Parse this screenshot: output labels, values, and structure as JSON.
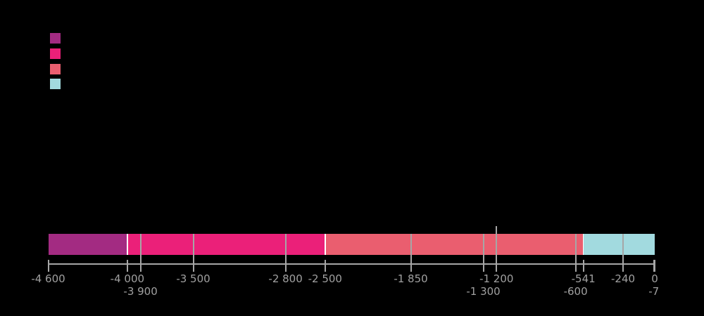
{
  "background_color": "#000000",
  "legend": {
    "swatches": [
      {
        "name": "legend-swatch-1",
        "color": "#A32B82"
      },
      {
        "name": "legend-swatch-2",
        "color": "#EB2079"
      },
      {
        "name": "legend-swatch-3",
        "color": "#EA5E6F"
      },
      {
        "name": "legend-swatch-4",
        "color": "#A2DADF"
      }
    ]
  },
  "chart_data": {
    "type": "bar",
    "subtype": "horizontal-stacked-timeline",
    "title": "",
    "xlabel": "",
    "ylabel": "",
    "grid": false,
    "legend_position": "top-left",
    "axis": {
      "min": -4600,
      "max": 0,
      "line_color": "#A6A6A6",
      "tick_color": "#A6A6A6",
      "label_color": "#A0A0A0"
    },
    "separator_color": "#FFFFFF",
    "segments": [
      {
        "start": -4600,
        "end": -4000,
        "color": "#A32B82"
      },
      {
        "start": -4000,
        "end": -2500,
        "color": "#EB2079"
      },
      {
        "start": -2500,
        "end": -541,
        "color": "#EA5E6F"
      },
      {
        "start": -541,
        "end": 0,
        "color": "#A2DADF"
      }
    ],
    "ticks": [
      {
        "value": -4600,
        "label": "-4 600",
        "row": 1,
        "line": "axis"
      },
      {
        "value": -4000,
        "label": "-4 000",
        "row": 1,
        "line": "axis"
      },
      {
        "value": -3900,
        "label": "-3 900",
        "row": 2,
        "line": "bar"
      },
      {
        "value": -3500,
        "label": "-3 500",
        "row": 1,
        "line": "bar"
      },
      {
        "value": -2800,
        "label": "-2 800",
        "row": 1,
        "line": "bar"
      },
      {
        "value": -2500,
        "label": "-2 500",
        "row": 1,
        "line": "axis"
      },
      {
        "value": -1850,
        "label": "-1 850",
        "row": 1,
        "line": "bar"
      },
      {
        "value": -1300,
        "label": "-1 300",
        "row": 2,
        "line": "bar"
      },
      {
        "value": -1200,
        "label": "-1 200",
        "row": 1,
        "line": "tall"
      },
      {
        "value": -600,
        "label": "-600",
        "row": 2,
        "line": "bar"
      },
      {
        "value": -541,
        "label": "-541",
        "row": 1,
        "line": "axis"
      },
      {
        "value": -240,
        "label": "-240",
        "row": 1,
        "line": "bar"
      },
      {
        "value": -7,
        "label": "-7",
        "row": 2,
        "line": "axis"
      },
      {
        "value": 0,
        "label": "0",
        "row": 1,
        "line": "axis"
      }
    ]
  }
}
